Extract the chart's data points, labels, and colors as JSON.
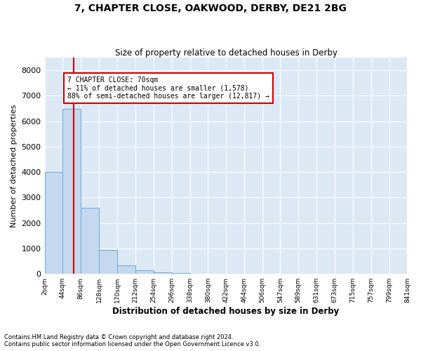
{
  "title": "7, CHAPTER CLOSE, OAKWOOD, DERBY, DE21 2BG",
  "subtitle": "Size of property relative to detached houses in Derby",
  "xlabel": "Distribution of detached houses by size in Derby",
  "ylabel": "Number of detached properties",
  "property_size": 70,
  "annotation_line1": "7 CHAPTER CLOSE: 70sqm",
  "annotation_line2": "← 11% of detached houses are smaller (1,578)",
  "annotation_line3": "88% of semi-detached houses are larger (12,817) →",
  "bar_color": "#c5d8ef",
  "bar_edge_color": "#6aaad4",
  "line_color": "#cc0000",
  "annotation_box_color": "#ffffff",
  "annotation_box_edge": "#cc0000",
  "background_color": "#dde8f5",
  "bin_edges": [
    2,
    44,
    86,
    128,
    170,
    212,
    254,
    296,
    338,
    380,
    422,
    464,
    506,
    547,
    589,
    631,
    673,
    715,
    757,
    799,
    841
  ],
  "bin_heights": [
    4000,
    6500,
    2600,
    950,
    350,
    150,
    50,
    30,
    0,
    0,
    0,
    0,
    0,
    0,
    0,
    0,
    0,
    0,
    0,
    0
  ],
  "ylim": [
    0,
    8500
  ],
  "yticks": [
    0,
    1000,
    2000,
    3000,
    4000,
    5000,
    6000,
    7000,
    8000
  ],
  "footnote1": "Contains HM Land Registry data © Crown copyright and database right 2024.",
  "footnote2": "Contains public sector information licensed under the Open Government Licence v3.0."
}
